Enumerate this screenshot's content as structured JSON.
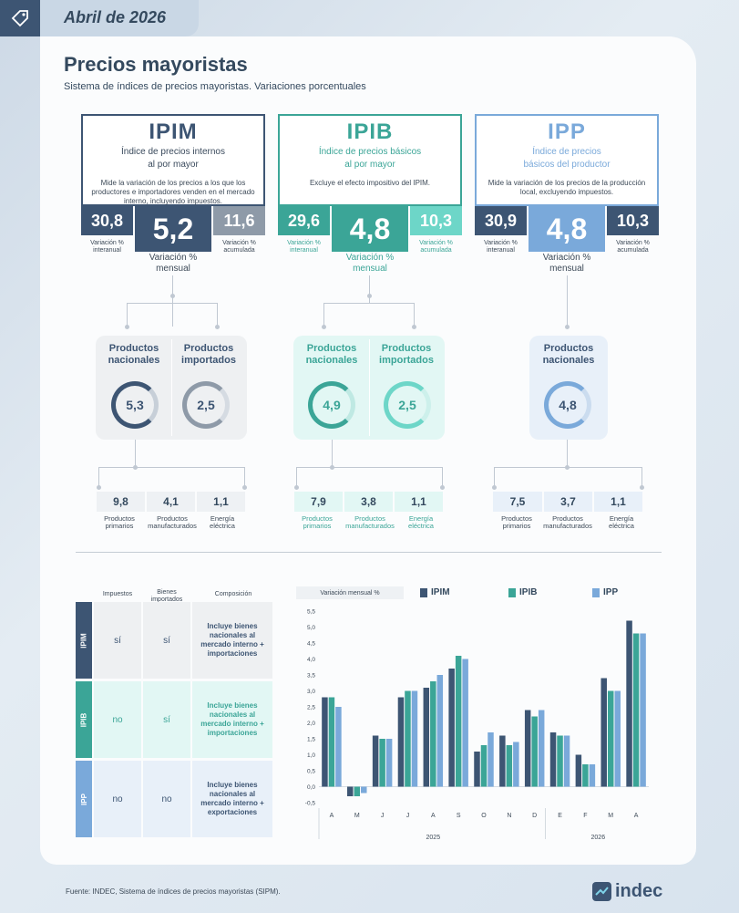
{
  "header": {
    "date": "Abril de 2026",
    "icon": "tag-icon"
  },
  "title": "Precios mayoristas",
  "subtitle": "Sistema de índices de precios mayoristas. Variaciones porcentuales",
  "colors": {
    "ipim": "#3d5573",
    "ipim_light": "#8e9aa8",
    "ipib": "#3ba597",
    "ipib_light": "#6dd6c8",
    "ipp": "#7aa9da",
    "ipp_light": "#9fc2e6"
  },
  "indices": [
    {
      "code": "IPIM",
      "full_line1": "Índice de precios internos",
      "full_line2": "al por mayor",
      "desc": "Mide la variación de los precios a los que los productores e importadores venden en el mercado interno, incluyendo impuestos.",
      "interanual": "30,8",
      "mensual": "5,2",
      "acumulada": "11,6",
      "lab_inter": "Variación % interanual",
      "lab_mens": "Variación % mensual",
      "lab_acum": "Variación % acumulada",
      "products": [
        {
          "title": "Productos nacionales",
          "value": "5,3"
        },
        {
          "title": "Productos importados",
          "value": "2,5"
        }
      ],
      "breakdown": [
        {
          "value": "9,8",
          "label": "Productos primarios"
        },
        {
          "value": "4,1",
          "label": "Productos manufacturados"
        },
        {
          "value": "1,1",
          "label": "Energía eléctrica"
        }
      ]
    },
    {
      "code": "IPIB",
      "full_line1": "Índice de precios básicos",
      "full_line2": "al por mayor",
      "desc": "Excluye el efecto impositivo del IPIM.",
      "interanual": "29,6",
      "mensual": "4,8",
      "acumulada": "10,3",
      "lab_inter": "Variación % interanual",
      "lab_mens": "Variación % mensual",
      "lab_acum": "Variación % acumulada",
      "products": [
        {
          "title": "Productos nacionales",
          "value": "4,9"
        },
        {
          "title": "Productos importados",
          "value": "2,5"
        }
      ],
      "breakdown": [
        {
          "value": "7,9",
          "label": "Productos primarios"
        },
        {
          "value": "3,8",
          "label": "Productos manufacturados"
        },
        {
          "value": "1,1",
          "label": "Energía eléctrica"
        }
      ]
    },
    {
      "code": "IPP",
      "full_line1": "Índice de precios",
      "full_line2": "básicos del productor",
      "desc": "Mide la variación de los precios de la producción local, excluyendo impuestos.",
      "interanual": "30,9",
      "mensual": "4,8",
      "acumulada": "10,3",
      "lab_inter": "Variación % interanual",
      "lab_mens": "Variación % mensual",
      "lab_acum": "Variación % acumulada",
      "products": [
        {
          "title": "Productos nacionales",
          "value": "4,8"
        }
      ],
      "breakdown": [
        {
          "value": "7,5",
          "label": "Productos primarios"
        },
        {
          "value": "3,7",
          "label": "Productos manufacturados"
        },
        {
          "value": "1,1",
          "label": "Energía eléctrica"
        }
      ]
    }
  ],
  "table": {
    "headers": [
      "Impuestos",
      "Bienes importados",
      "Composición"
    ],
    "rows": [
      {
        "code": "IPIM",
        "impuestos": "sí",
        "importados": "sí",
        "composicion": "Incluye bienes nacionales al mercado interno + importaciones"
      },
      {
        "code": "IPIB",
        "impuestos": "no",
        "importados": "sí",
        "composicion": "Incluye bienes nacionales al mercado interno + importaciones"
      },
      {
        "code": "IPP",
        "impuestos": "no",
        "importados": "no",
        "composicion": "Incluye bienes nacionales al mercado interno + exportaciones"
      }
    ]
  },
  "chart_data": {
    "type": "bar",
    "title": "Variación mensual %",
    "categories": [
      "A",
      "M",
      "J",
      "J",
      "A",
      "S",
      "O",
      "N",
      "D",
      "E",
      "F",
      "M",
      "A"
    ],
    "year_labels": [
      "2025",
      "2026"
    ],
    "series": [
      {
        "name": "IPIM",
        "values": [
          2.8,
          -0.3,
          1.6,
          2.8,
          3.1,
          3.7,
          1.1,
          1.6,
          2.4,
          1.7,
          1.0,
          3.4,
          5.2
        ]
      },
      {
        "name": "IPIB",
        "values": [
          2.8,
          -0.3,
          1.5,
          3.0,
          3.3,
          4.1,
          1.3,
          1.3,
          2.2,
          1.6,
          0.7,
          3.0,
          4.8
        ]
      },
      {
        "name": "IPP",
        "values": [
          2.5,
          -0.2,
          1.5,
          3.0,
          3.5,
          4.0,
          1.7,
          1.4,
          2.4,
          1.6,
          0.7,
          3.0,
          4.8
        ]
      }
    ],
    "yticks": [
      "5,5",
      "5,0",
      "4,5",
      "4,0",
      "3,5",
      "3,0",
      "2,5",
      "2,0",
      "1,5",
      "1,0",
      "0,5",
      "0,0",
      "-0,5"
    ],
    "ylim": [
      -0.5,
      5.5
    ],
    "grid": false,
    "legend": "top"
  },
  "footer": {
    "source": "Fuente: INDEC, Sistema de índices de precios mayoristas (SIPM).",
    "logo_text": "indec"
  }
}
